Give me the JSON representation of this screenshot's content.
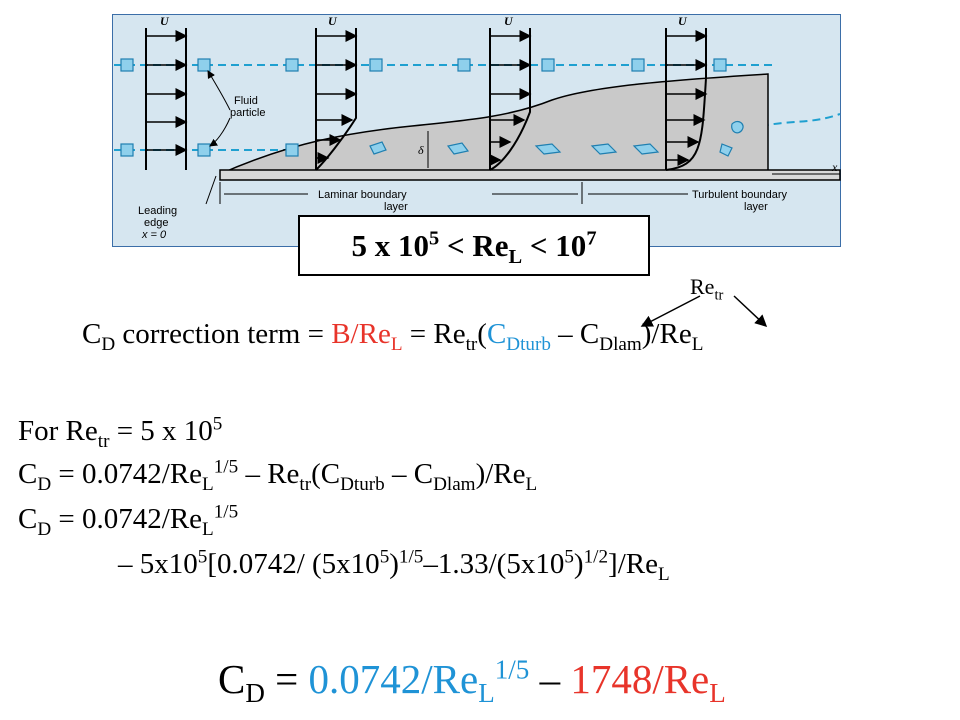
{
  "figure": {
    "labels": {
      "u": "U",
      "fluid_particle_1": "Fluid",
      "fluid_particle_2": "particle",
      "delta": "δ",
      "x_axis": "x",
      "leading_edge_1": "Leading",
      "leading_edge_2": "edge",
      "leading_edge_3": "x = 0",
      "laminar_1": "Laminar boundary",
      "laminar_2": "layer",
      "turbulent_1": "Turbulent boundary",
      "turbulent_2": "layer"
    },
    "colors": {
      "background": "#d6e6f0",
      "streamline": "#1fa0d0",
      "plate": "#c9c9c9",
      "border": "#3b6ea8"
    }
  },
  "range": {
    "base": "5 x 10",
    "exp": "5",
    "op1": " < Re",
    "sub": "L",
    "op2": " < 10",
    "exp2": "7"
  },
  "retr_label": {
    "base": "Re",
    "sub": "tr"
  },
  "correction": {
    "c": "C",
    "c_sub": "D",
    "text1": " correction term = ",
    "b_term": "B/Re",
    "b_sub": "L",
    "text2": " = Re",
    "tr": "tr",
    "paren": "(",
    "c2": "C",
    "dturb": "Dturb",
    "dash": " – C",
    "dlam": "Dlam",
    "end": ")/Re",
    "end_sub": "L"
  },
  "for_line": {
    "text": "For Re",
    "sub": "tr",
    "rest": " = 5 x 10",
    "exp": "5"
  },
  "eq1": {
    "c": "C",
    "c_sub": "D",
    "a": " = 0.0742/Re",
    "l": "L",
    "e": "1/5",
    "b": " – Re",
    "tr": "tr",
    "p": "(C",
    "dturb": "Dturb",
    "m": " – C",
    "dlam": "Dlam",
    "r": ")/Re",
    "l2": "L"
  },
  "eq2": {
    "c": "C",
    "c_sub": "D",
    "a": " = 0.0742/Re",
    "l": "L",
    "e": "1/5"
  },
  "eq3": {
    "a": "– 5x10",
    "e1": "5",
    "b": "[0.0742/ (5x10",
    "e2": "5",
    "c": ")",
    "e3": "1/5",
    "d": "–1.33/(5x10",
    "e4": "5",
    "f": ")",
    "e5": "1/2",
    "g": "]/Re",
    "l": "L"
  },
  "final": {
    "c": "C",
    "c_sub": "D",
    "eq": " = ",
    "t1": "0.0742/Re",
    "l1": "L",
    "e1": "1/5",
    "minus": " – ",
    "t2": "1748/Re",
    "l2": "L"
  }
}
